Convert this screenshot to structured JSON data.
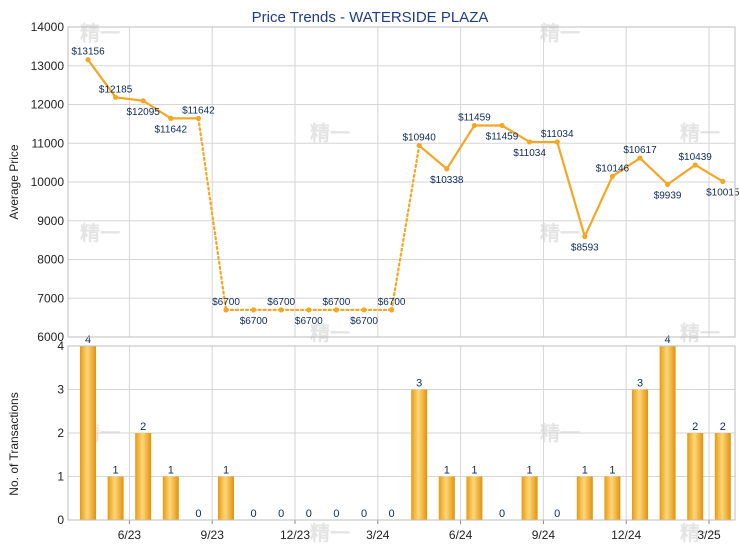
{
  "chart_data": [
    {
      "type": "line",
      "title": "Price Trends - WATERSIDE PLAZA",
      "ylabel": "Average Price",
      "ylim": [
        6000,
        14000
      ],
      "yticks": [
        "6000",
        "7000",
        "8000",
        "9000",
        "10000",
        "11000",
        "12000",
        "13000",
        "14000"
      ],
      "grid": true,
      "line_color": "#f5a623",
      "points": [
        {
          "i": 0,
          "value": 13156,
          "label": "$13156"
        },
        {
          "i": 1,
          "value": 12185,
          "label": "$12185"
        },
        {
          "i": 2,
          "value": 12095,
          "label": "$12095"
        },
        {
          "i": 3,
          "value": 11642,
          "label": "$11642"
        },
        {
          "i": 4,
          "value": 11642,
          "label": "$11642"
        },
        {
          "i": 5,
          "value": 6700,
          "label": "$6700"
        },
        {
          "i": 6,
          "value": 6700,
          "label": "$6700"
        },
        {
          "i": 7,
          "value": 6700,
          "label": "$6700"
        },
        {
          "i": 8,
          "value": 6700,
          "label": "$6700"
        },
        {
          "i": 9,
          "value": 6700,
          "label": "$6700"
        },
        {
          "i": 10,
          "value": 6700,
          "label": "$6700"
        },
        {
          "i": 11,
          "value": 6700,
          "label": "$6700"
        },
        {
          "i": 12,
          "value": 10940,
          "label": "$10940"
        },
        {
          "i": 13,
          "value": 10338,
          "label": "$10338"
        },
        {
          "i": 14,
          "value": 11459,
          "label": "$11459"
        },
        {
          "i": 15,
          "value": 11459,
          "label": "$11459"
        },
        {
          "i": 16,
          "value": 11034,
          "label": "$11034"
        },
        {
          "i": 17,
          "value": 11034,
          "label": "$11034"
        },
        {
          "i": 18,
          "value": 8593,
          "label": "$8593"
        },
        {
          "i": 19,
          "value": 10146,
          "label": "$10146"
        },
        {
          "i": 20,
          "value": 10617,
          "label": "$10617"
        },
        {
          "i": 21,
          "value": 9939,
          "label": "$9939"
        },
        {
          "i": 22,
          "value": 10439,
          "label": "$10439"
        },
        {
          "i": 23,
          "value": 10015,
          "label": "$10015"
        }
      ],
      "dotted_segments": [
        [
          4,
          12
        ]
      ]
    },
    {
      "type": "bar",
      "ylabel": "No. of Transactions",
      "ylim": [
        0,
        4
      ],
      "yticks": [
        "0",
        "1",
        "2",
        "3",
        "4"
      ],
      "bar_color": "#f0a81c",
      "values": [
        4,
        1,
        2,
        1,
        0,
        1,
        0,
        0,
        0,
        0,
        0,
        0,
        3,
        1,
        1,
        0,
        1,
        0,
        1,
        1,
        3,
        4,
        2,
        2
      ],
      "x_tick_labels": [
        {
          "after_index": 1,
          "label": "6/23"
        },
        {
          "after_index": 4,
          "label": "9/23"
        },
        {
          "after_index": 7,
          "label": "12/23"
        },
        {
          "after_index": 10,
          "label": "3/24"
        },
        {
          "after_index": 13,
          "label": "6/24"
        },
        {
          "after_index": 16,
          "label": "9/24"
        },
        {
          "after_index": 19,
          "label": "12/24"
        },
        {
          "after_index": 22,
          "label": "3/25"
        }
      ]
    }
  ],
  "watermark": "精一"
}
